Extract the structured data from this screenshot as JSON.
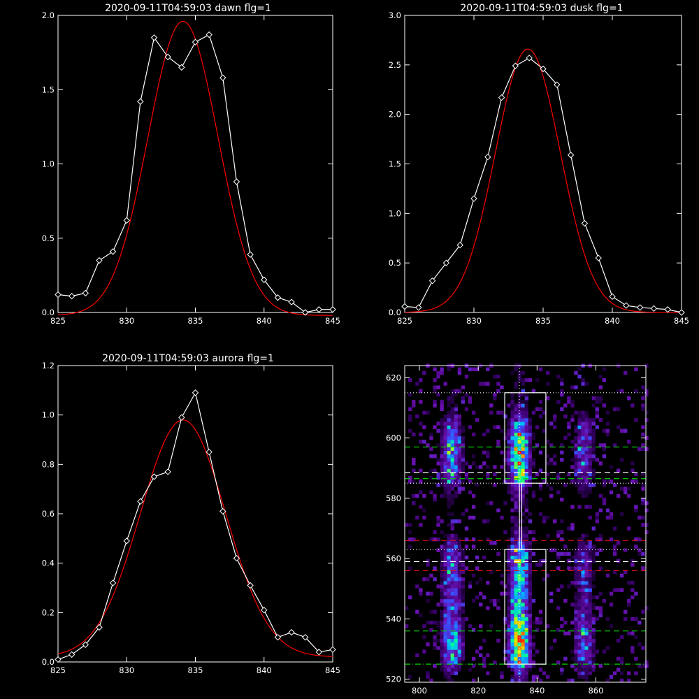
{
  "colors": {
    "background": "#000000",
    "axes": "#ffffff",
    "data": "#ffffff",
    "fit": "#ff0000"
  },
  "chart_data": [
    {
      "id": "dawn",
      "type": "line",
      "title": "2020-09-11T04:59:03 dawn flg=1",
      "xlim": [
        825,
        845
      ],
      "ylim": [
        0,
        2.0
      ],
      "xticks": [
        "825",
        "830",
        "835",
        "840",
        "845"
      ],
      "yticks": [
        "0.0",
        "0.5",
        "1.0",
        "1.5",
        "2.0"
      ],
      "series": [
        {
          "role": "data",
          "marker": "diamond",
          "x": [
            825,
            826,
            827,
            828,
            829,
            830,
            831,
            832,
            833,
            834,
            835,
            836,
            837,
            838,
            839,
            840,
            841,
            842,
            843,
            844,
            845
          ],
          "y": [
            0.12,
            0.11,
            0.13,
            0.35,
            0.41,
            0.62,
            1.42,
            1.85,
            1.72,
            1.65,
            1.82,
            1.87,
            1.58,
            0.88,
            0.39,
            0.22,
            0.1,
            0.07,
            0.0,
            0.02,
            0.02
          ]
        },
        {
          "role": "gaussian-fit",
          "amplitude": 1.98,
          "center": 834.1,
          "sigma": 2.55,
          "offset": -0.02
        }
      ]
    },
    {
      "id": "dusk",
      "type": "line",
      "title": "2020-09-11T04:59:03 dusk flg=1",
      "xlim": [
        825,
        845
      ],
      "ylim": [
        0,
        3.0
      ],
      "xticks": [
        "825",
        "830",
        "835",
        "840",
        "845"
      ],
      "yticks": [
        "0.0",
        "0.5",
        "1.0",
        "1.5",
        "2.0",
        "2.5",
        "3.0"
      ],
      "series": [
        {
          "role": "data",
          "marker": "diamond",
          "x": [
            825,
            826,
            827,
            828,
            829,
            830,
            831,
            832,
            833,
            834,
            835,
            836,
            837,
            838,
            839,
            840,
            841,
            842,
            843,
            844,
            845
          ],
          "y": [
            0.06,
            0.05,
            0.32,
            0.5,
            0.68,
            1.15,
            1.57,
            2.17,
            2.49,
            2.57,
            2.46,
            2.3,
            1.59,
            0.9,
            0.55,
            0.16,
            0.07,
            0.05,
            0.04,
            0.03,
            0.0
          ]
        },
        {
          "role": "gaussian-fit",
          "amplitude": 2.66,
          "center": 833.9,
          "sigma": 2.35,
          "offset": 0.0
        }
      ]
    },
    {
      "id": "aurora",
      "type": "line",
      "title": "2020-09-11T04:59:03 aurora flg=1",
      "xlim": [
        825,
        845
      ],
      "ylim": [
        0,
        1.2
      ],
      "xticks": [
        "825",
        "830",
        "835",
        "840",
        "845"
      ],
      "yticks": [
        "0.0",
        "0.2",
        "0.4",
        "0.6",
        "0.8",
        "1.0",
        "1.2"
      ],
      "series": [
        {
          "role": "data",
          "marker": "diamond",
          "x": [
            825,
            826,
            827,
            828,
            829,
            830,
            831,
            832,
            833,
            834,
            835,
            836,
            837,
            838,
            839,
            840,
            841,
            842,
            843,
            844,
            845
          ],
          "y": [
            0.01,
            0.03,
            0.07,
            0.14,
            0.32,
            0.49,
            0.65,
            0.75,
            0.77,
            0.99,
            1.09,
            0.85,
            0.61,
            0.42,
            0.31,
            0.21,
            0.1,
            0.12,
            0.1,
            0.04,
            0.05
          ]
        },
        {
          "role": "gaussian-fit",
          "amplitude": 0.96,
          "center": 834.1,
          "sigma": 3.1,
          "offset": 0.02
        }
      ]
    },
    {
      "id": "spectrogram",
      "type": "heatmap",
      "title": "",
      "xlim": [
        795,
        877
      ],
      "ylim": [
        519,
        624
      ],
      "xticks": [
        "800",
        "820",
        "840",
        "860"
      ],
      "yticks": [
        "520",
        "540",
        "560",
        "580",
        "600",
        "620"
      ],
      "colormap": [
        "#000000",
        "#3a006e",
        "#6a10b0",
        "#3a4cff",
        "#00b8ff",
        "#00ff90",
        "#c8ff00",
        "#ffb000",
        "#ff1a00"
      ],
      "emission_columns": [
        {
          "x_center": 811,
          "width": 3.2,
          "peak": 0.55
        },
        {
          "x_center": 834,
          "width": 3.0,
          "peak": 1.0
        },
        {
          "x_center": 856,
          "width": 3.0,
          "peak": 0.38
        }
      ],
      "bands": [
        {
          "y_min": 525,
          "y_max": 563,
          "strength": 1.0,
          "peak_y": 532
        },
        {
          "y_min": 585,
          "y_max": 605,
          "strength": 0.85,
          "peak_y": 595
        }
      ],
      "boxes": [
        {
          "x": [
            829,
            843
          ],
          "y": [
            585,
            615
          ]
        },
        {
          "x": [
            829,
            843
          ],
          "y": [
            525,
            563
          ]
        },
        {
          "x": [
            834,
            834.8
          ],
          "y": [
            563,
            585
          ]
        }
      ],
      "hlines": [
        {
          "y": 615,
          "style": "dotted",
          "color": "#ffffff"
        },
        {
          "y": 597,
          "style": "dashed",
          "color": "#00d000"
        },
        {
          "y": 588.5,
          "style": "dashed",
          "color": "#ffffff"
        },
        {
          "y": 586.5,
          "style": "dashed",
          "color": "#00d000"
        },
        {
          "y": 585,
          "style": "dotted",
          "color": "#ffffff"
        },
        {
          "y": 566,
          "style": "dashed",
          "color": "#d01010"
        },
        {
          "y": 563,
          "style": "dotted",
          "color": "#ffffff"
        },
        {
          "y": 559,
          "style": "dashed",
          "color": "#ffffff"
        },
        {
          "y": 556,
          "style": "dashed",
          "color": "#d01010"
        },
        {
          "y": 536,
          "style": "dashed",
          "color": "#00d000"
        },
        {
          "y": 525,
          "style": "dashdot",
          "color": "#00d000"
        }
      ],
      "vlines": [
        {
          "x": 834,
          "style": "dotted",
          "color": "#ffffff"
        }
      ]
    }
  ]
}
